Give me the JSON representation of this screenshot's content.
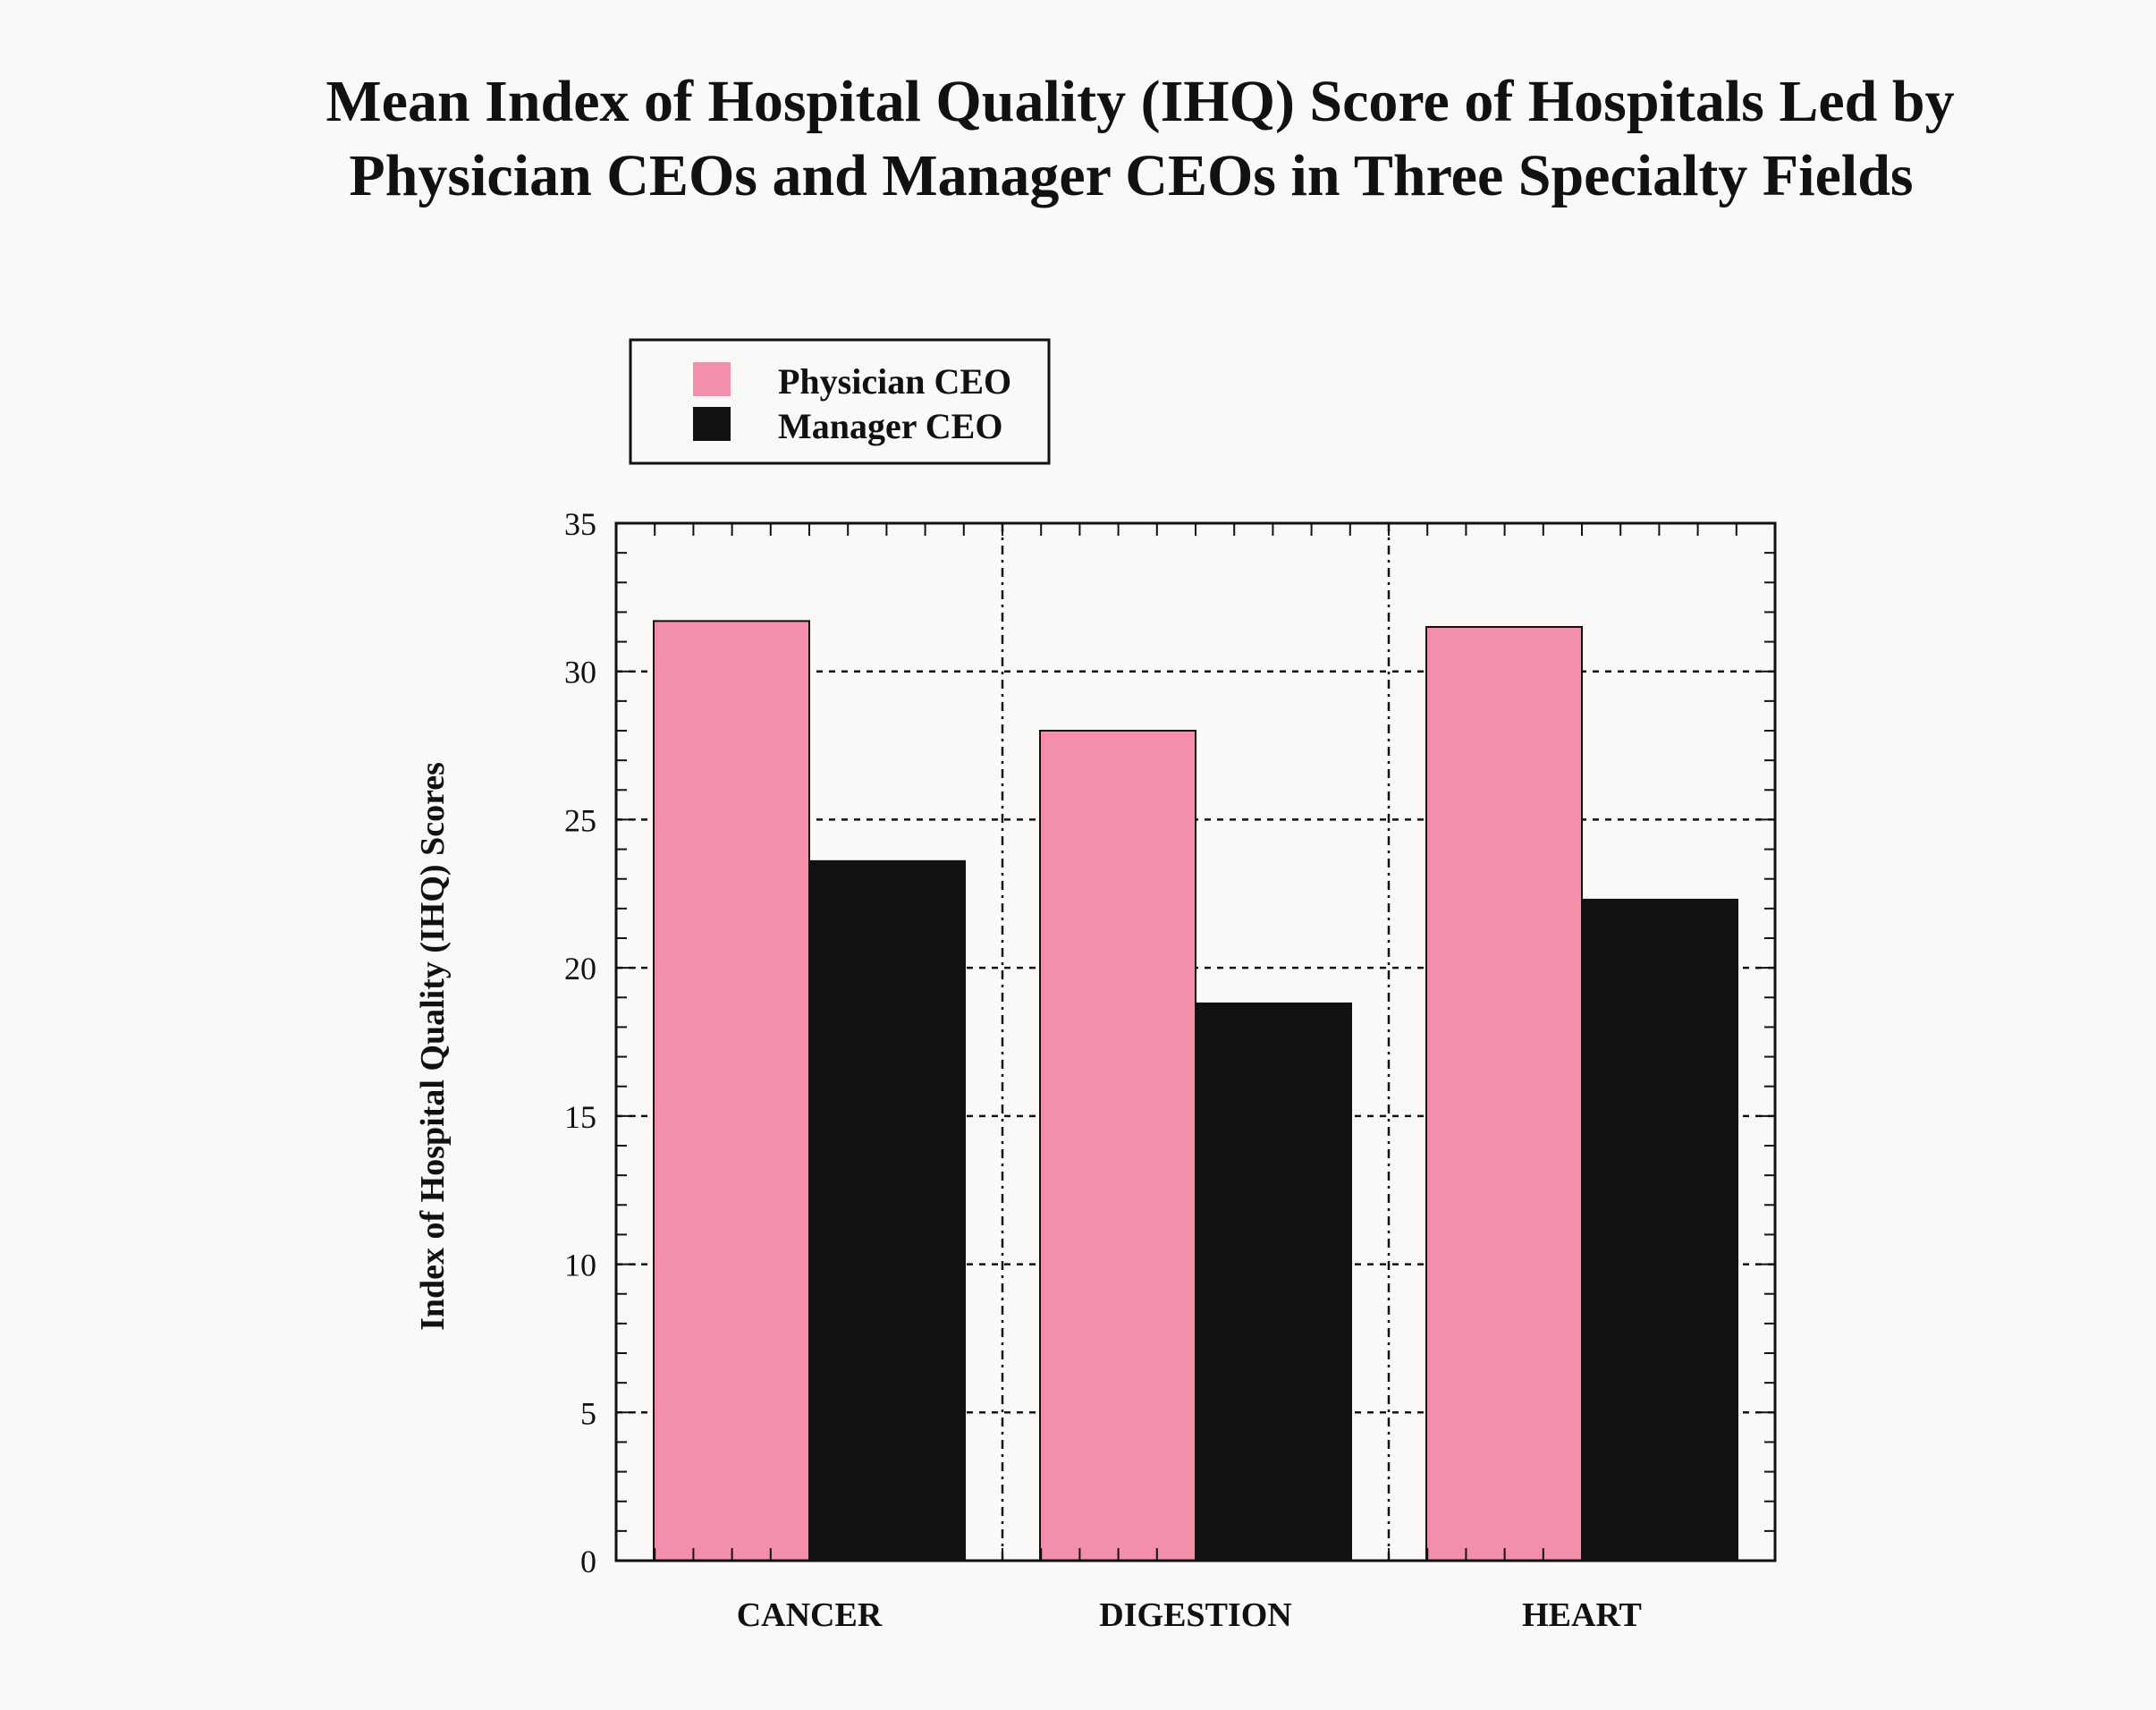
{
  "chart_data": {
    "type": "bar",
    "title": "Mean Index of Hospital Quality (IHQ) Score of Hospitals Led by",
    "subtitle": "Physician CEOs and Manager CEOs in Three Specialty Fields",
    "xlabel": "",
    "ylabel": "Index of Hospital Quality (IHQ) Scores",
    "categories": [
      "CANCER",
      "DIGESTION",
      "HEART"
    ],
    "series": [
      {
        "name": "Physician CEO",
        "color": "#f48fab",
        "values": [
          31.7,
          28.0,
          31.5
        ]
      },
      {
        "name": "Manager CEO",
        "color": "#111111",
        "values": [
          23.6,
          18.8,
          22.3
        ]
      }
    ],
    "ylim": [
      0,
      35
    ],
    "yticks": [
      "0",
      "5",
      "10",
      "15",
      "20",
      "25",
      "30",
      "35"
    ],
    "grid": true,
    "legend_position": "top-left"
  }
}
